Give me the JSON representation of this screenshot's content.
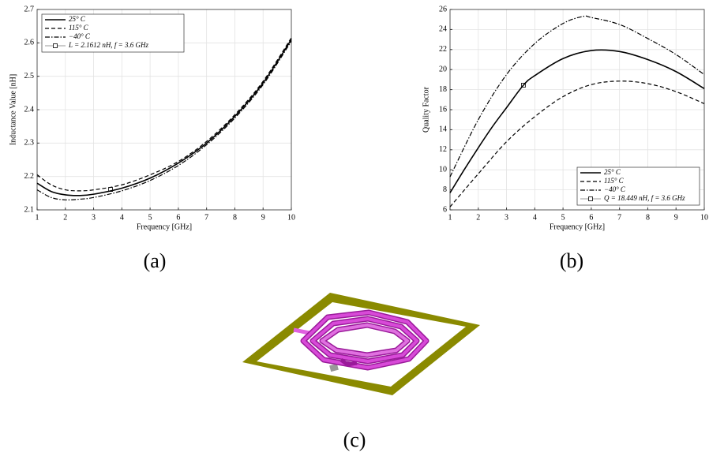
{
  "chart_data": [
    {
      "type": "line",
      "xlabel": "Frequency [GHz]",
      "ylabel": "Inductance Value [nH]",
      "xlim": [
        1,
        10
      ],
      "ylim": [
        2.1,
        2.7
      ],
      "xticks": [
        1,
        2,
        3,
        4,
        5,
        6,
        7,
        8,
        9,
        10
      ],
      "yticks": [
        2.1,
        2.2,
        2.3,
        2.4,
        2.5,
        2.6,
        2.7
      ],
      "grid": true,
      "legend": "upper left",
      "series": [
        {
          "name": "25° C",
          "color": "#000000",
          "style": "solid",
          "x": [
            1,
            1.5,
            2,
            2.5,
            3,
            4,
            5,
            6,
            7,
            8,
            9,
            10
          ],
          "values": [
            2.18,
            2.155,
            2.145,
            2.143,
            2.147,
            2.165,
            2.195,
            2.24,
            2.3,
            2.38,
            2.48,
            2.61
          ]
        },
        {
          "name": "115° C",
          "color": "#000000",
          "style": "dashed",
          "x": [
            1,
            1.5,
            2,
            2.5,
            3,
            4,
            5,
            6,
            7,
            8,
            9,
            10
          ],
          "values": [
            2.205,
            2.175,
            2.16,
            2.157,
            2.16,
            2.175,
            2.205,
            2.245,
            2.305,
            2.385,
            2.485,
            2.615
          ]
        },
        {
          "name": "−40° C",
          "color": "#000000",
          "style": "dashdot",
          "x": [
            1,
            1.5,
            2,
            2.5,
            3,
            4,
            5,
            6,
            7,
            8,
            9,
            10
          ],
          "values": [
            2.16,
            2.137,
            2.13,
            2.132,
            2.137,
            2.157,
            2.188,
            2.233,
            2.295,
            2.375,
            2.475,
            2.605
          ]
        },
        {
          "name": "L = 2.1612 nH, f = 3.6 GHz",
          "color": "#000000",
          "style": "marker",
          "x": [
            3.6
          ],
          "values": [
            2.1612
          ]
        }
      ]
    },
    {
      "type": "line",
      "xlabel": "Frequency [GHz]",
      "ylabel": "Quality Factor",
      "xlim": [
        1,
        10
      ],
      "ylim": [
        6,
        26
      ],
      "xticks": [
        1,
        2,
        3,
        4,
        5,
        6,
        7,
        8,
        9,
        10
      ],
      "yticks": [
        6,
        8,
        10,
        12,
        14,
        16,
        18,
        20,
        22,
        24,
        26
      ],
      "grid": true,
      "legend": "lower right",
      "series": [
        {
          "name": "25° C",
          "color": "#000000",
          "style": "solid",
          "x": [
            1,
            1.5,
            2,
            2.5,
            3,
            3.6,
            4,
            5,
            6,
            7,
            8,
            9,
            10
          ],
          "values": [
            7.7,
            10,
            12.2,
            14.3,
            16.2,
            18.45,
            19.4,
            21.1,
            21.9,
            21.8,
            21,
            19.8,
            18.1
          ]
        },
        {
          "name": "115° C",
          "color": "#000000",
          "style": "dashed",
          "x": [
            1,
            2,
            3,
            4,
            5,
            6,
            7,
            8,
            9,
            10
          ],
          "values": [
            6.3,
            9.6,
            12.8,
            15.3,
            17.3,
            18.5,
            18.85,
            18.6,
            17.8,
            16.6
          ]
        },
        {
          "name": "−40° C",
          "color": "#000000",
          "style": "dashdot",
          "x": [
            1,
            2,
            3,
            4,
            5,
            5.7,
            6,
            7,
            8,
            9,
            10
          ],
          "values": [
            9.3,
            15,
            19.5,
            22.6,
            24.6,
            25.3,
            25.2,
            24.5,
            23.1,
            21.5,
            19.5
          ]
        },
        {
          "name": "Q = 18.449 nH, f = 3.6 GHz",
          "color": "#000000",
          "style": "marker",
          "x": [
            3.6
          ],
          "values": [
            18.449
          ]
        }
      ]
    }
  ],
  "captions": [
    "(a)",
    "(b)",
    "(c)"
  ]
}
